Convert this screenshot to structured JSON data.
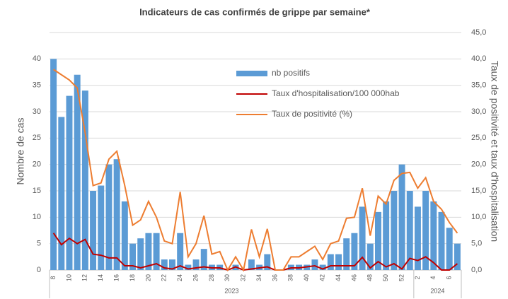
{
  "chart_data": {
    "type": "bar_line",
    "title": "Indicateurs de cas confirmés de grippe par semaine*",
    "ylabel": "Nombre de cas",
    "y2label": "Taux de positivité et taux d'hospitalisation",
    "categories": [
      "8",
      null,
      "10",
      null,
      "12",
      null,
      "14",
      null,
      "16",
      null,
      "18",
      null,
      "20",
      null,
      "22",
      null,
      "24",
      null,
      "26",
      null,
      "28",
      null,
      "30",
      null,
      "32",
      null,
      "34",
      null,
      "36",
      null,
      "38",
      null,
      "40",
      null,
      "42",
      null,
      "44",
      null,
      "46",
      null,
      "48",
      null,
      "50",
      null,
      "52",
      null,
      "2",
      null,
      "4",
      null,
      "6",
      null
    ],
    "groups": [
      {
        "label": "2023",
        "count": 46
      },
      {
        "label": "2024",
        "count": 6
      }
    ],
    "series": [
      {
        "name": "nb positifs",
        "color": "#5b9bd5",
        "kind": "bar",
        "values": [
          40,
          29,
          33,
          37,
          34,
          15,
          16,
          20,
          21,
          13,
          5,
          6,
          7,
          7,
          2,
          2,
          7,
          1,
          2,
          4,
          1,
          1,
          0,
          1,
          0,
          2,
          1,
          3,
          0,
          0,
          1,
          1,
          1,
          2,
          1,
          3,
          3,
          6,
          7,
          12,
          5,
          11,
          13,
          15,
          20,
          15,
          12,
          15,
          13,
          11,
          8,
          5
        ]
      },
      {
        "name": "Taux d'hospitalisation/100 000hab",
        "color": "#c00000",
        "kind": "line",
        "axis": "y2",
        "values": [
          7,
          4.8,
          6,
          5,
          5.8,
          3,
          2.8,
          2.3,
          2.3,
          0.8,
          0.8,
          0.4,
          0.8,
          1.2,
          0.4,
          0.2,
          0.8,
          0.2,
          0.4,
          0.6,
          0.4,
          0.4,
          0,
          0.6,
          0,
          0.2,
          0.4,
          0.6,
          0,
          0,
          0.4,
          0.4,
          0.6,
          0.8,
          0.2,
          0.8,
          0.8,
          0.8,
          0.8,
          2.4,
          0.4,
          1.6,
          0.6,
          1.2,
          0.2,
          2.2,
          1.8,
          2.5,
          1.4,
          0,
          0,
          1.2
        ]
      },
      {
        "name": "Taux de positivité (%)",
        "color": "#ed7d31",
        "kind": "line",
        "axis": "y2",
        "values": [
          38,
          37,
          36,
          34.5,
          26,
          16,
          16.5,
          21,
          22.5,
          16,
          8.5,
          9.5,
          13,
          10,
          5.5,
          5,
          14.8,
          2.5,
          5,
          10.3,
          3,
          3.5,
          0,
          2.5,
          0,
          7.7,
          2.5,
          7.8,
          0,
          0,
          2.5,
          2.5,
          3.5,
          4.5,
          2,
          5,
          5.5,
          9.8,
          10,
          15.5,
          6.5,
          14,
          12.5,
          17,
          18.3,
          18.5,
          15.5,
          17.5,
          13,
          11.5,
          9,
          7
        ]
      }
    ],
    "ylim": [
      0,
      45
    ],
    "yticks": [
      0,
      5,
      10,
      15,
      20,
      25,
      30,
      35,
      40
    ],
    "y2lim": [
      0,
      45
    ],
    "y2ticks": [
      {
        "value": 0,
        "label": "0,0"
      },
      {
        "value": 5,
        "label": "5,0"
      },
      {
        "value": 10,
        "label": "10,0"
      },
      {
        "value": 15,
        "label": "15,0"
      },
      {
        "value": 20,
        "label": "20,0"
      },
      {
        "value": 25,
        "label": "25,0"
      },
      {
        "value": 30,
        "label": "30,0"
      },
      {
        "value": 35,
        "label": "35,0"
      },
      {
        "value": 40,
        "label": "40,0"
      },
      {
        "value": 45,
        "label": "45,0"
      }
    ],
    "grid": true
  }
}
